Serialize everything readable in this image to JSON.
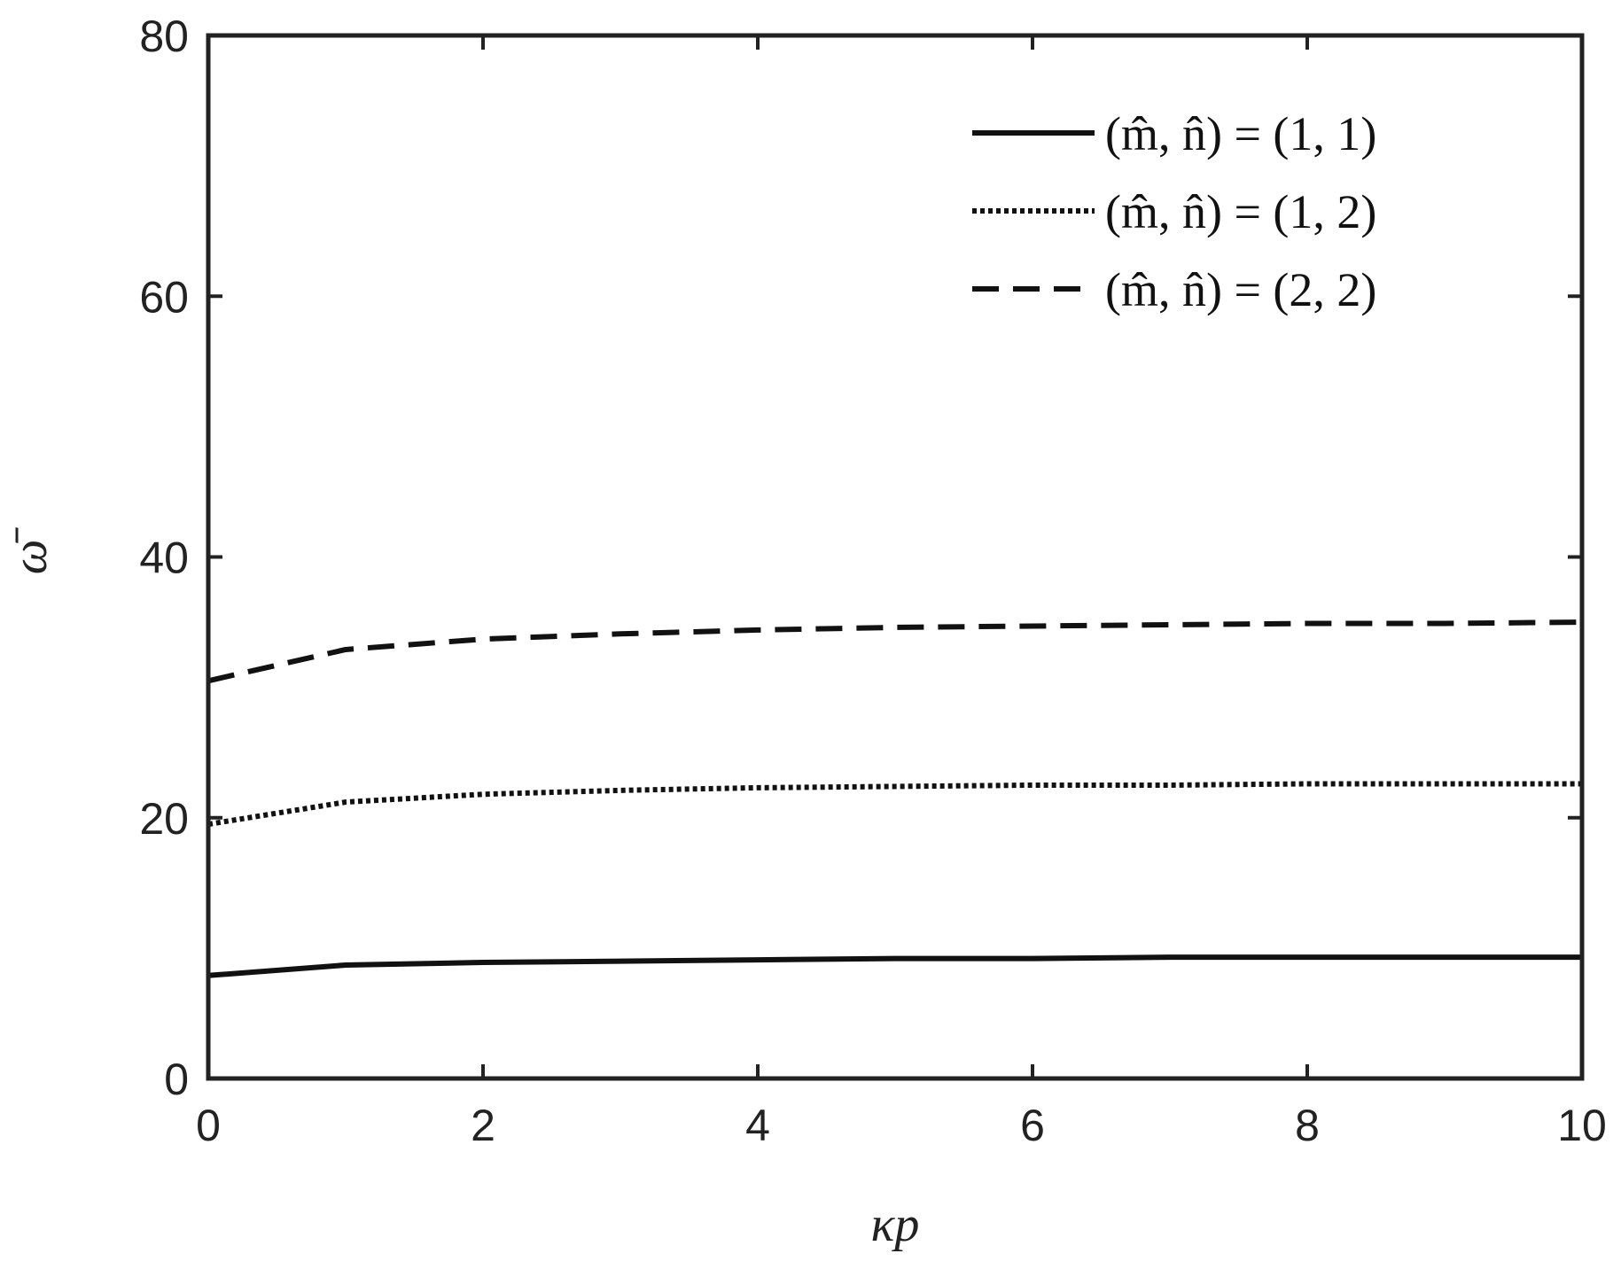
{
  "chart_data": {
    "type": "line",
    "xlabel": "κp",
    "ylabel": "ω̄",
    "xlim": [
      0,
      10
    ],
    "ylim": [
      0,
      80
    ],
    "xticks": [
      0,
      2,
      4,
      6,
      8,
      10
    ],
    "yticks": [
      0,
      20,
      40,
      60,
      80
    ],
    "grid": false,
    "legend_position": "top-right",
    "x": [
      0,
      1,
      2,
      3,
      4,
      5,
      6,
      7,
      8,
      9,
      10
    ],
    "series": [
      {
        "name": "(m̂, n̂) = (1, 1)",
        "style": "solid",
        "values": [
          7.9,
          8.7,
          8.9,
          9.0,
          9.1,
          9.2,
          9.2,
          9.3,
          9.3,
          9.3,
          9.3
        ]
      },
      {
        "name": "(m̂, n̂) = (1, 2)",
        "style": "dotted",
        "values": [
          19.5,
          21.2,
          21.8,
          22.1,
          22.3,
          22.4,
          22.5,
          22.5,
          22.6,
          22.6,
          22.6
        ]
      },
      {
        "name": "(m̂, n̂) = (2, 2)",
        "style": "dashed",
        "values": [
          30.5,
          32.9,
          33.7,
          34.1,
          34.4,
          34.6,
          34.7,
          34.8,
          34.9,
          34.9,
          35.0
        ]
      }
    ],
    "colors": {
      "line": "#111111",
      "axis": "#222222"
    }
  }
}
